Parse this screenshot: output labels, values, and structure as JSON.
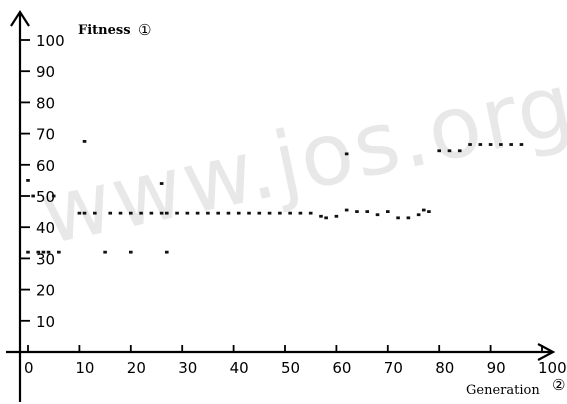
{
  "chart_data": {
    "type": "scatter",
    "title": "",
    "watermark": "www.jos.org",
    "ylabel": "Fitness",
    "ylabel_marker": "①",
    "xlabel": "Generation",
    "xlabel_marker": "②",
    "xlim": [
      0,
      100
    ],
    "ylim": [
      0,
      100
    ],
    "x_ticks": [
      0,
      10,
      20,
      30,
      40,
      50,
      60,
      70,
      80,
      90,
      100
    ],
    "x_tick_labels": [
      "0",
      "10",
      "20",
      "30",
      "40",
      "50",
      "60",
      "70",
      "80",
      "90",
      "100"
    ],
    "y_ticks": [
      10,
      20,
      30,
      40,
      50,
      60,
      70,
      80,
      90,
      100
    ],
    "y_tick_labels": [
      "10",
      "20",
      "30",
      "40",
      "50",
      "60",
      "70",
      "80",
      "90",
      "100"
    ],
    "grid": false,
    "legend": "none",
    "marker_color": "#111111",
    "series": [
      {
        "x": [
          0,
          2,
          4,
          6,
          10,
          11,
          13,
          16,
          18,
          20,
          22,
          24,
          26,
          27,
          29,
          31,
          33,
          35,
          37,
          39,
          41,
          43,
          45,
          47,
          49,
          51,
          53,
          55,
          57,
          58,
          60,
          62,
          64,
          66,
          68,
          70,
          72,
          74,
          76,
          77,
          78,
          80,
          82,
          84,
          86,
          88,
          90,
          92,
          94,
          96,
          11,
          26,
          62,
          0,
          1,
          3,
          5,
          15,
          20,
          27
        ],
        "y": [
          32,
          32,
          32,
          32,
          44.5,
          44.5,
          44.5,
          44.5,
          44.5,
          44.5,
          44.5,
          44.5,
          44.5,
          44.5,
          44.5,
          44.5,
          44.5,
          44.5,
          44.5,
          44.5,
          44.5,
          44.5,
          44.5,
          44.5,
          44.5,
          44.5,
          44.5,
          44.5,
          43.5,
          43,
          43.5,
          45.5,
          45,
          45,
          44,
          45,
          43,
          43,
          44,
          45.5,
          45,
          64.5,
          64.5,
          64.5,
          66.5,
          66.5,
          66.5,
          66.5,
          66.5,
          66.5,
          67.5,
          54,
          63.5,
          55,
          50,
          32,
          50,
          32,
          32,
          32
        ]
      }
    ]
  }
}
